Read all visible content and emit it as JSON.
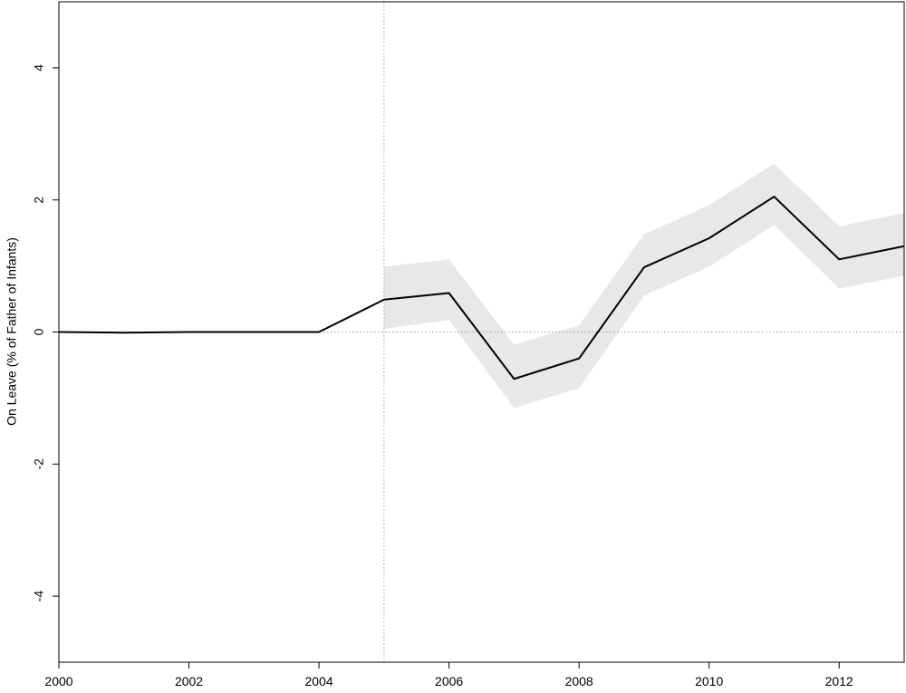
{
  "chart_data": {
    "type": "line",
    "y_label": "On Leave (% of Father of Infants)",
    "x": [
      2000,
      2001,
      2002,
      2003,
      2004,
      2005,
      2006,
      2007,
      2008,
      2009,
      2010,
      2011,
      2012,
      2013
    ],
    "series": [
      {
        "color": "#000000",
        "values": [
          0,
          -0.01,
          0,
          0,
          0,
          0.49,
          0.59,
          -0.71,
          -0.4,
          0.98,
          1.42,
          2.05,
          1.1,
          1.3
        ],
        "lower": [
          null,
          null,
          null,
          null,
          null,
          0.05,
          0.18,
          -1.15,
          -0.85,
          0.55,
          0.99,
          1.62,
          0.66,
          0.85
        ],
        "upper": [
          null,
          null,
          null,
          null,
          null,
          0.99,
          1.1,
          -0.19,
          0.1,
          1.48,
          1.92,
          2.55,
          1.6,
          1.8
        ],
        "band_color": "#e8e8e8"
      }
    ],
    "xlim": [
      2000,
      2013
    ],
    "xticks": [
      2000,
      2002,
      2004,
      2006,
      2008,
      2010,
      2012
    ],
    "ylim": [
      -5,
      5
    ],
    "yticks": [
      -4,
      -2,
      0,
      2,
      4
    ],
    "vline": 2005,
    "hline": 0
  }
}
